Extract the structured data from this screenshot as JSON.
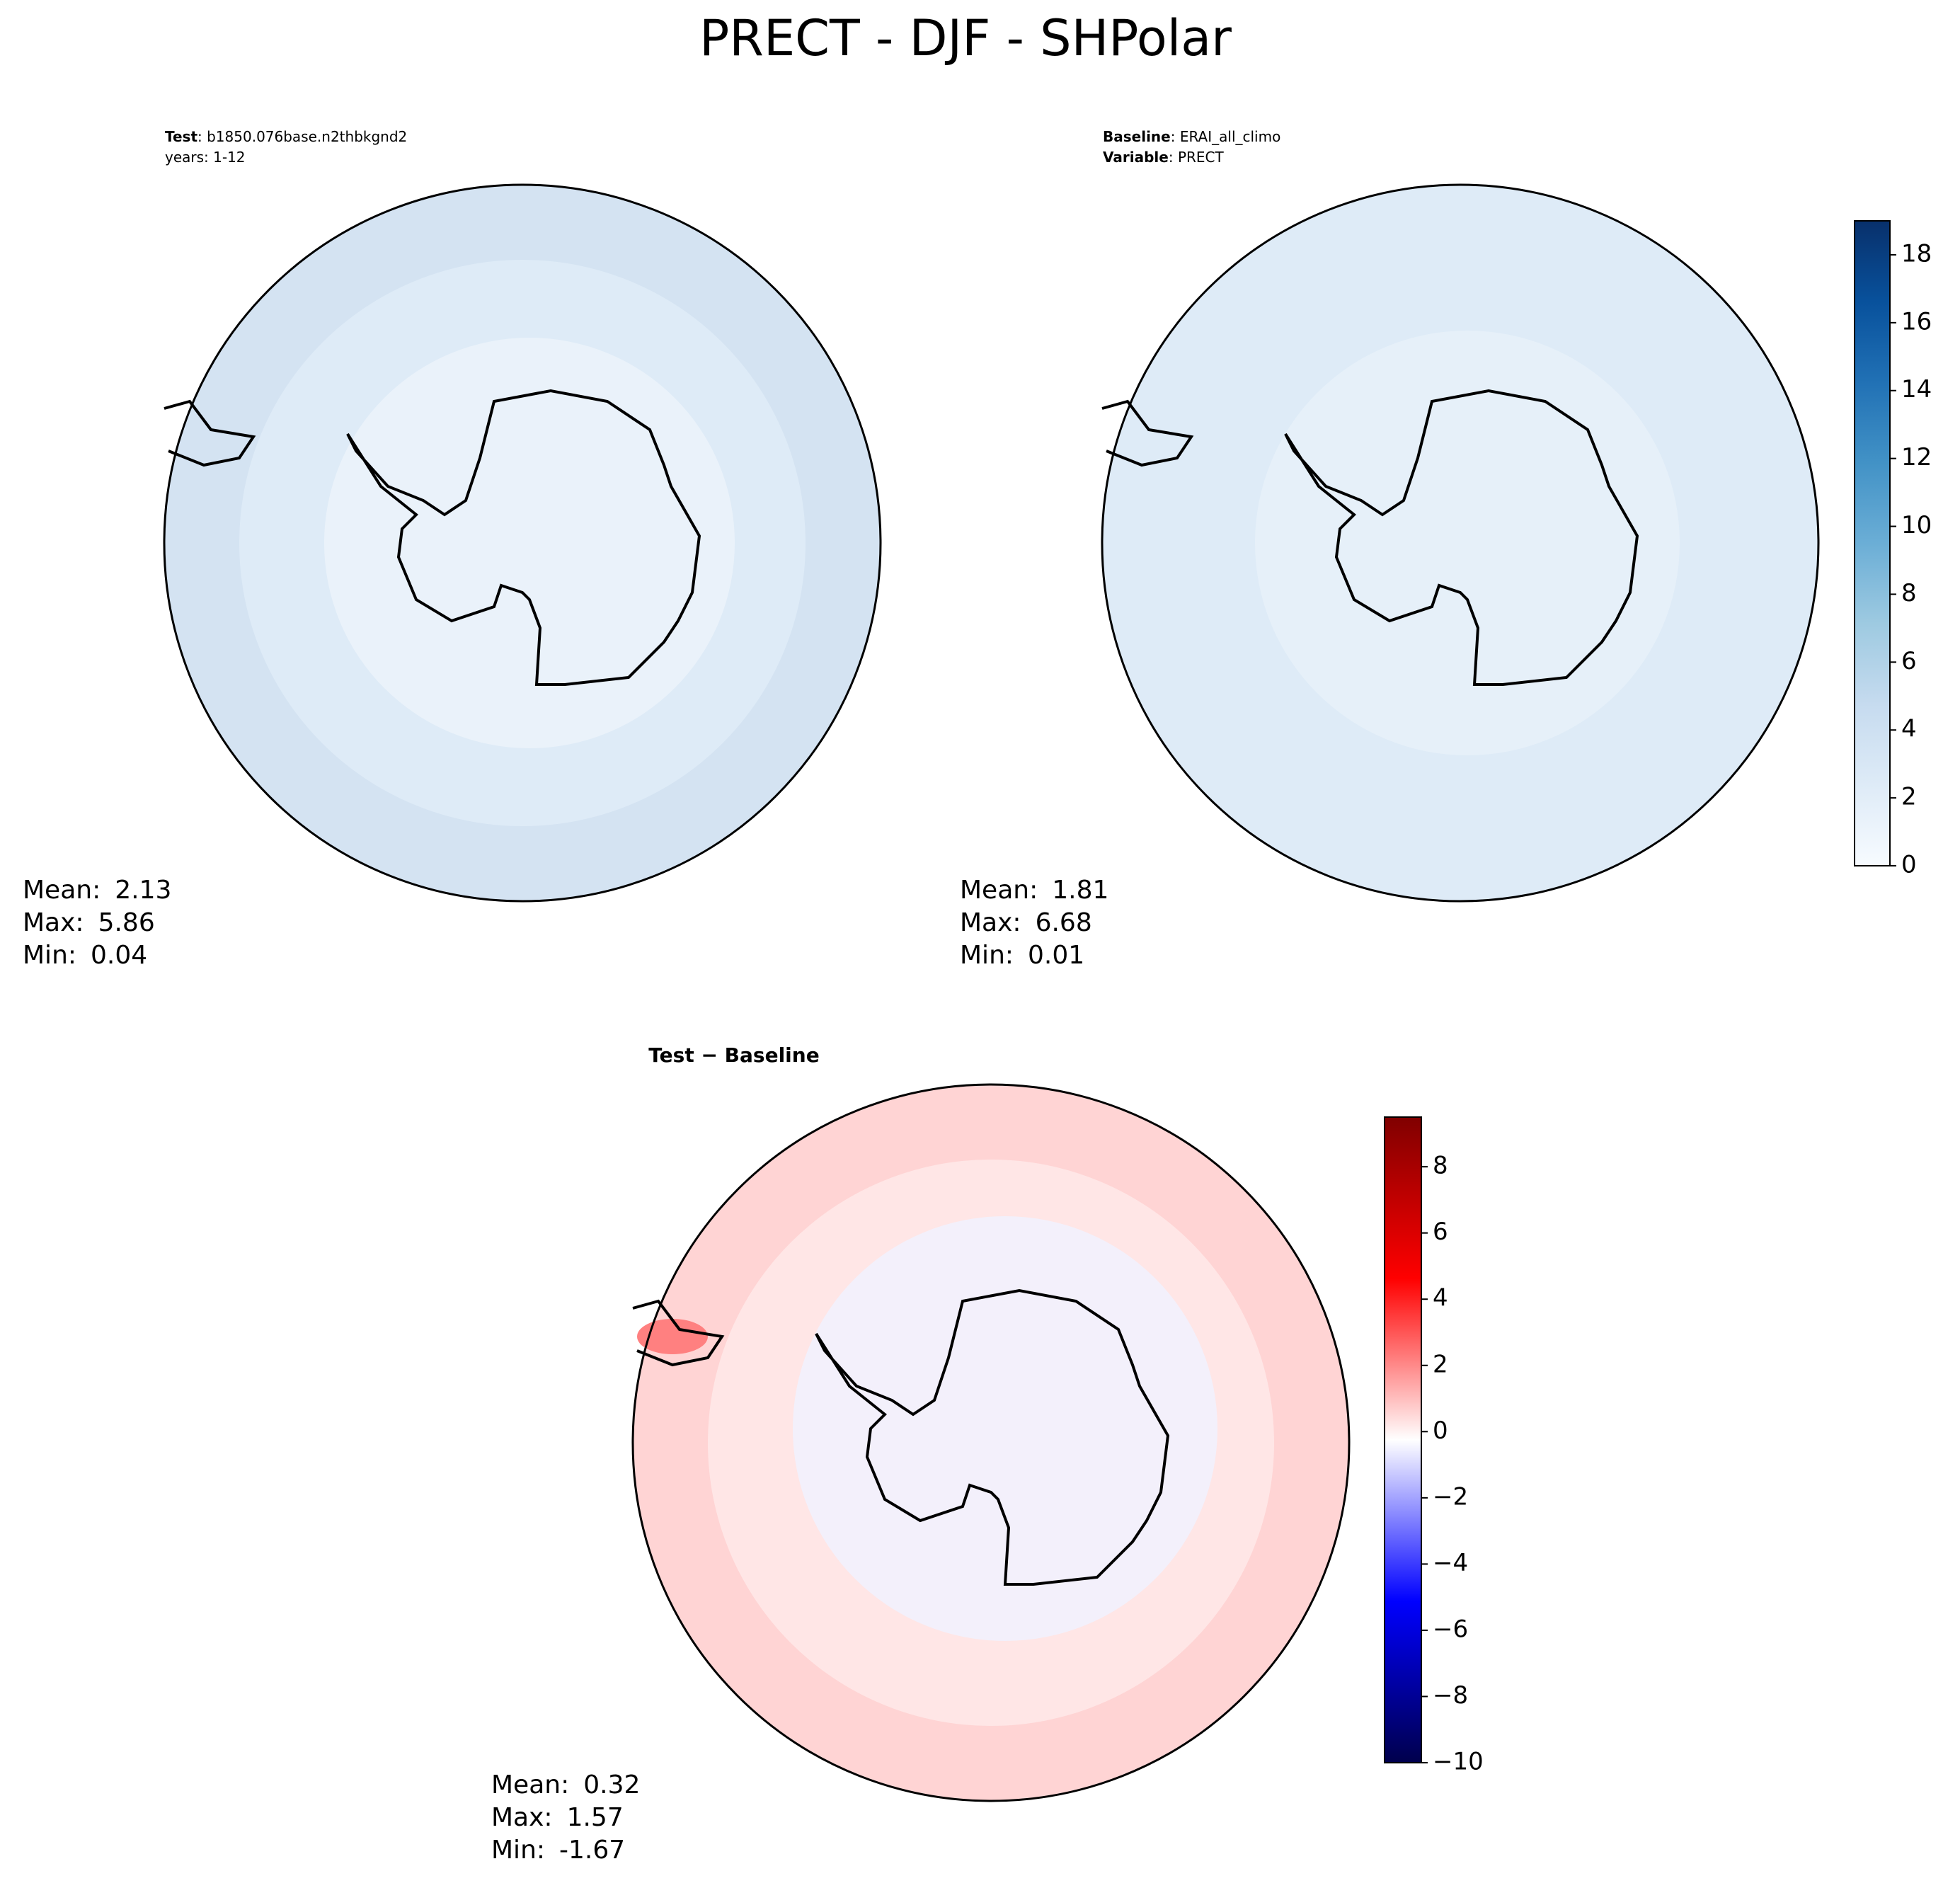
{
  "title": "PRECT - DJF - SHPolar",
  "chart_data": [
    {
      "type": "map",
      "label": "Test",
      "text": ": b1850.076base.n2thbkgnd2",
      "subtitle": "years: 1-12",
      "stats": [
        {
          "label": "Mean:",
          "value": 2.13
        },
        {
          "label": "Max:",
          "value": 5.86
        },
        {
          "label": "Min:",
          "value": 0.04
        }
      ]
    },
    {
      "type": "map",
      "label": "Baseline",
      "text": ": ERAI_all_climo",
      "subtitle_label": "Variable",
      "subtitle": ": PRECT",
      "stats": [
        {
          "label": "Mean:",
          "value": 1.81
        },
        {
          "label": "Max:",
          "value": 6.68
        },
        {
          "label": "Min:",
          "value": 0.01
        }
      ],
      "colorbar": {
        "ylim": [
          0,
          19
        ],
        "yticks": [
          0,
          2,
          4,
          6,
          8,
          10,
          12,
          14,
          16,
          18
        ],
        "colors": [
          "#f7fbff",
          "#deebf7",
          "#c6dbef",
          "#9ecae1",
          "#6baed6",
          "#4292c6",
          "#2171b5",
          "#08519c",
          "#08306b"
        ]
      }
    },
    {
      "type": "map",
      "title": "Test − Baseline",
      "stats": [
        {
          "label": "Mean:",
          "value": 0.32
        },
        {
          "label": "Max:",
          "value": 1.57
        },
        {
          "label": "Min:",
          "value": -1.67
        }
      ],
      "colorbar": {
        "ylim": [
          -10,
          9.5
        ],
        "yticks": [
          {
            "value": -10,
            "label": "−10"
          },
          {
            "value": -8,
            "label": "−8"
          },
          {
            "value": -6,
            "label": "−6"
          },
          {
            "value": -4,
            "label": "−4"
          },
          {
            "value": -2,
            "label": "−2"
          },
          0,
          2,
          4,
          6,
          8
        ],
        "colors": [
          "#00004c",
          "#0000ff",
          "#ffffff",
          "#ff0000",
          "#800000"
        ]
      }
    }
  ]
}
